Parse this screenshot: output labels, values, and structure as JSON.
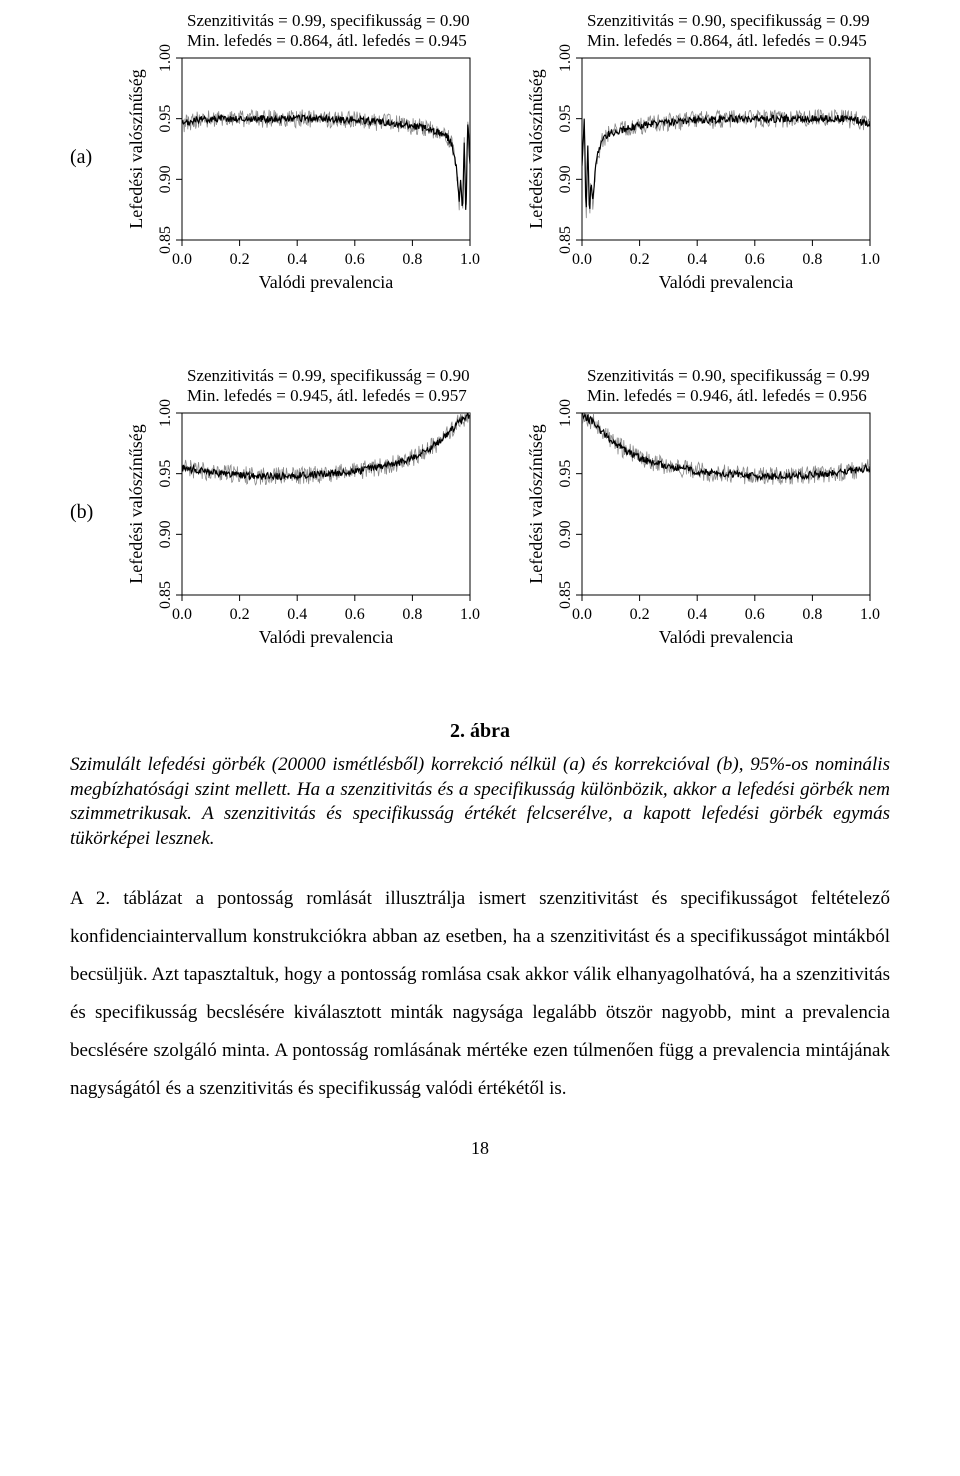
{
  "axes": {
    "xlabel": "Valódi prevalencia",
    "ylabel": "Lefedési valószínűség",
    "xlim": [
      0.0,
      1.0
    ],
    "ylim": [
      0.85,
      1.0
    ],
    "xticks": [
      0.0,
      0.2,
      0.4,
      0.6,
      0.8,
      1.0
    ],
    "xtick_labels": [
      "0.0",
      "0.2",
      "0.4",
      "0.6",
      "0.8",
      "1.0"
    ],
    "yticks": [
      0.85,
      0.9,
      0.95,
      1.0
    ],
    "ytick_labels": [
      "0.85",
      "0.90",
      "0.95",
      "1.00"
    ],
    "line_color": "#000000",
    "noise_color": "#888888",
    "background": "#ffffff",
    "axis_color": "#000000",
    "title_fontsize": 17,
    "tick_fontsize": 16,
    "label_fontsize": 18,
    "noise_sd": 0.003
  },
  "row_labels": {
    "a": "(a)",
    "b": "(b)"
  },
  "panels": {
    "a1": {
      "title1": "Szenzitivitás = 0.99, specifikusság = 0.90",
      "title2": "Min. lefedés = 0.864, átl. lefedés = 0.945",
      "curve": [
        [
          0.0,
          0.945
        ],
        [
          0.05,
          0.949
        ],
        [
          0.1,
          0.95
        ],
        [
          0.15,
          0.95
        ],
        [
          0.2,
          0.95
        ],
        [
          0.25,
          0.95
        ],
        [
          0.3,
          0.95
        ],
        [
          0.35,
          0.95
        ],
        [
          0.4,
          0.95
        ],
        [
          0.45,
          0.95
        ],
        [
          0.5,
          0.95
        ],
        [
          0.55,
          0.949
        ],
        [
          0.6,
          0.949
        ],
        [
          0.65,
          0.948
        ],
        [
          0.7,
          0.947
        ],
        [
          0.75,
          0.946
        ],
        [
          0.8,
          0.944
        ],
        [
          0.83,
          0.943
        ],
        [
          0.86,
          0.941
        ],
        [
          0.88,
          0.94
        ],
        [
          0.9,
          0.938
        ],
        [
          0.92,
          0.935
        ],
        [
          0.935,
          0.93
        ],
        [
          0.945,
          0.92
        ],
        [
          0.955,
          0.905
        ],
        [
          0.962,
          0.88
        ],
        [
          0.968,
          0.9
        ],
        [
          0.974,
          0.87
        ],
        [
          0.98,
          0.93
        ],
        [
          0.986,
          0.864
        ],
        [
          0.992,
          0.95
        ],
        [
          1.0,
          0.91
        ]
      ]
    },
    "a2": {
      "title1": "Szenzitivitás = 0.90, specifikusság = 0.99",
      "title2": "Min. lefedés = 0.864, átl. lefedés = 0.945",
      "curve": [
        [
          0.0,
          0.91
        ],
        [
          0.008,
          0.95
        ],
        [
          0.014,
          0.864
        ],
        [
          0.02,
          0.93
        ],
        [
          0.026,
          0.87
        ],
        [
          0.032,
          0.9
        ],
        [
          0.038,
          0.88
        ],
        [
          0.045,
          0.905
        ],
        [
          0.055,
          0.92
        ],
        [
          0.065,
          0.93
        ],
        [
          0.08,
          0.935
        ],
        [
          0.1,
          0.938
        ],
        [
          0.12,
          0.94
        ],
        [
          0.14,
          0.941
        ],
        [
          0.17,
          0.943
        ],
        [
          0.2,
          0.944
        ],
        [
          0.25,
          0.946
        ],
        [
          0.3,
          0.947
        ],
        [
          0.35,
          0.948
        ],
        [
          0.4,
          0.949
        ],
        [
          0.45,
          0.949
        ],
        [
          0.5,
          0.95
        ],
        [
          0.55,
          0.95
        ],
        [
          0.6,
          0.95
        ],
        [
          0.65,
          0.95
        ],
        [
          0.7,
          0.95
        ],
        [
          0.75,
          0.95
        ],
        [
          0.8,
          0.95
        ],
        [
          0.85,
          0.95
        ],
        [
          0.9,
          0.95
        ],
        [
          0.95,
          0.949
        ],
        [
          1.0,
          0.945
        ]
      ]
    },
    "b1": {
      "title1": "Szenzitivitás = 0.99, specifikusság = 0.90",
      "title2": "Min. lefedés = 0.945, átl. lefedés = 0.957",
      "curve": [
        [
          0.0,
          0.955
        ],
        [
          0.05,
          0.953
        ],
        [
          0.1,
          0.951
        ],
        [
          0.15,
          0.95
        ],
        [
          0.2,
          0.949
        ],
        [
          0.25,
          0.948
        ],
        [
          0.3,
          0.948
        ],
        [
          0.35,
          0.948
        ],
        [
          0.4,
          0.948
        ],
        [
          0.45,
          0.949
        ],
        [
          0.5,
          0.95
        ],
        [
          0.55,
          0.951
        ],
        [
          0.6,
          0.952
        ],
        [
          0.65,
          0.954
        ],
        [
          0.7,
          0.956
        ],
        [
          0.75,
          0.959
        ],
        [
          0.8,
          0.963
        ],
        [
          0.84,
          0.968
        ],
        [
          0.88,
          0.974
        ],
        [
          0.91,
          0.98
        ],
        [
          0.94,
          0.987
        ],
        [
          0.96,
          0.992
        ],
        [
          0.98,
          0.996
        ],
        [
          1.0,
          0.999
        ]
      ]
    },
    "b2": {
      "title1": "Szenzitivitás = 0.90, specifikusság = 0.99",
      "title2": "Min. lefedés = 0.946, átl. lefedés = 0.956",
      "curve": [
        [
          0.0,
          0.999
        ],
        [
          0.02,
          0.996
        ],
        [
          0.04,
          0.992
        ],
        [
          0.06,
          0.987
        ],
        [
          0.09,
          0.98
        ],
        [
          0.12,
          0.974
        ],
        [
          0.16,
          0.968
        ],
        [
          0.2,
          0.963
        ],
        [
          0.25,
          0.959
        ],
        [
          0.3,
          0.956
        ],
        [
          0.35,
          0.954
        ],
        [
          0.4,
          0.952
        ],
        [
          0.45,
          0.951
        ],
        [
          0.5,
          0.95
        ],
        [
          0.55,
          0.949
        ],
        [
          0.6,
          0.948
        ],
        [
          0.65,
          0.948
        ],
        [
          0.7,
          0.948
        ],
        [
          0.75,
          0.948
        ],
        [
          0.8,
          0.949
        ],
        [
          0.85,
          0.95
        ],
        [
          0.9,
          0.951
        ],
        [
          0.95,
          0.953
        ],
        [
          1.0,
          0.955
        ]
      ]
    }
  },
  "figure_title": "2. ábra",
  "caption": "Szimulált lefedési görbék (20000 ismétlésből) korrekció nélkül (a) és korrekcióval (b), 95%-os nominális megbízhatósági szint mellett. Ha a szenzitivitás és a specifikusság különbözik, akkor a lefedési görbék nem szimmetrikusak. A szenzitivitás és specifikusság értékét felcserélve, a kapott lefedési görbék egymás tükörképei lesznek.",
  "body": "A 2. táblázat a pontosság romlását illusztrálja ismert szenzitivitást és specifikusságot feltételező konfidenciaintervallum konstrukciókra abban az esetben, ha a szenzitivitást és a specifikusságot mintákból becsüljük. Azt tapasztaltuk, hogy a pontosság romlása csak akkor válik elhanyagolhatóvá, ha a szenzitivitás és specifikusság becslésére kiválasztott minták nagysága legalább ötször nagyobb, mint a prevalencia becslésére szolgáló minta. A pontosság romlásának mértéke ezen túlmenően függ a prevalencia mintájának nagyságától és a szenzitivitás és specifikusság valódi értékétől is.",
  "page_number": "18"
}
